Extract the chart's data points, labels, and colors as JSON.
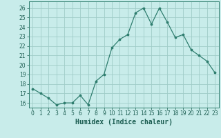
{
  "x": [
    0,
    1,
    2,
    3,
    4,
    5,
    6,
    7,
    8,
    9,
    10,
    11,
    12,
    13,
    14,
    15,
    16,
    17,
    18,
    19,
    20,
    21,
    22,
    23
  ],
  "y": [
    17.5,
    17.0,
    16.5,
    15.8,
    16.0,
    16.0,
    16.8,
    15.8,
    18.3,
    19.0,
    21.8,
    22.7,
    23.2,
    25.5,
    26.0,
    24.3,
    26.0,
    24.5,
    22.9,
    23.2,
    21.6,
    21.0,
    20.4,
    19.2
  ],
  "xlabel": "Humidex (Indice chaleur)",
  "ylim": [
    15.5,
    26.7
  ],
  "xlim": [
    -0.5,
    23.5
  ],
  "yticks": [
    16,
    17,
    18,
    19,
    20,
    21,
    22,
    23,
    24,
    25,
    26
  ],
  "xticks": [
    0,
    1,
    2,
    3,
    4,
    5,
    6,
    7,
    8,
    9,
    10,
    11,
    12,
    13,
    14,
    15,
    16,
    17,
    18,
    19,
    20,
    21,
    22,
    23
  ],
  "line_color": "#2e7d6e",
  "marker_color": "#2e7d6e",
  "bg_color": "#c8ecea",
  "grid_color": "#a0ccc8",
  "xlabel_color": "#1a5c50",
  "tick_color": "#1a5c50",
  "spine_color": "#2e7d6e"
}
